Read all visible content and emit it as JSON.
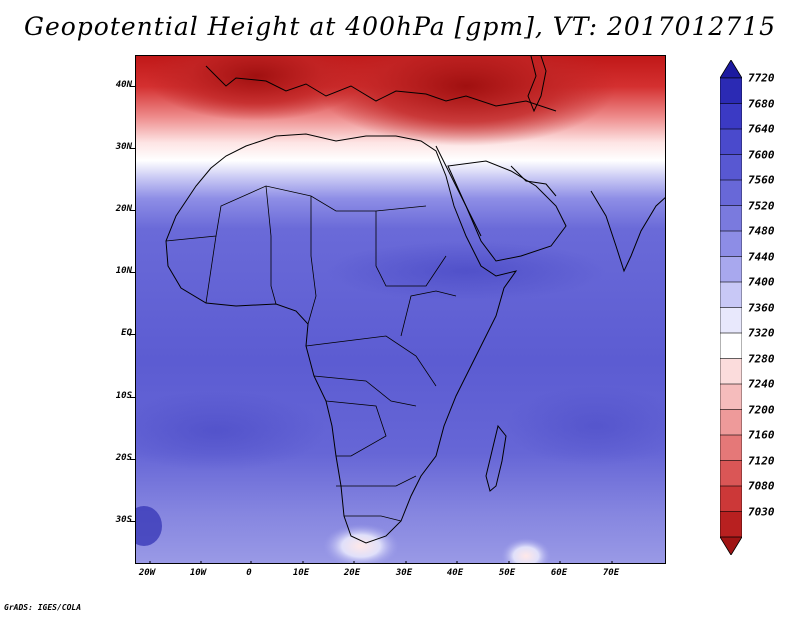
{
  "title": "Geopotential Height at 400hPa [gpm], VT: 2017012715",
  "credit": "GrADS: IGES/COLA",
  "map": {
    "projection": "lat-lon",
    "lon_range": [
      -22,
      80
    ],
    "lat_range": [
      -37,
      46
    ],
    "variable": "geopotential height",
    "level": "400hPa",
    "units": "gpm"
  },
  "axes": {
    "y_ticks": [
      "40N",
      "30N",
      "20N",
      "10N",
      "EQ",
      "10S",
      "20S",
      "30S"
    ],
    "x_ticks": [
      "20W",
      "10W",
      "0",
      "10E",
      "20E",
      "30E",
      "40E",
      "50E",
      "60E",
      "70E"
    ]
  },
  "colorbar": {
    "labels": [
      "7720",
      "7680",
      "7640",
      "7600",
      "7560",
      "7520",
      "7480",
      "7440",
      "7400",
      "7360",
      "7320",
      "7280",
      "7240",
      "7200",
      "7160",
      "7120",
      "7080",
      "7030"
    ],
    "colors": [
      "#1c1aa0",
      "#2b2ab4",
      "#3b3ac4",
      "#4a4acc",
      "#5858d2",
      "#6868d8",
      "#7a7ade",
      "#8d8de6",
      "#a8a8ee",
      "#c8c8f6",
      "#e8e8fc",
      "#ffffff",
      "#fbdcdc",
      "#f5bcbc",
      "#ee9a9a",
      "#e57878",
      "#da5656",
      "#cc3838",
      "#b82020",
      "#a01414"
    ]
  }
}
